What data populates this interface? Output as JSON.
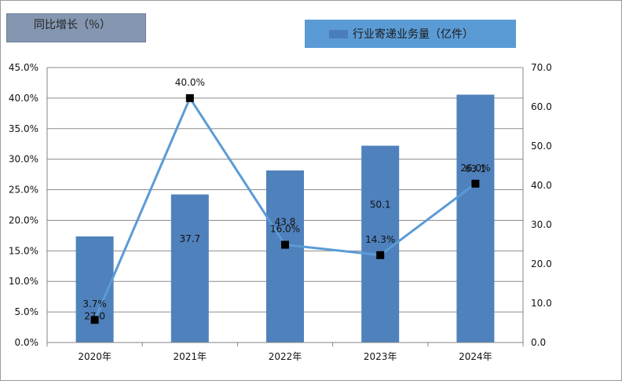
{
  "chart_data": {
    "type": "bar+line",
    "categories": [
      "2020年",
      "2021年",
      "2022年",
      "2023年",
      "2024年"
    ],
    "series": [
      {
        "name": "行业寄递业务量（亿件）",
        "kind": "bar",
        "axis": "right",
        "values": [
          27.0,
          37.7,
          43.8,
          50.1,
          63.1
        ],
        "labels": [
          "27.0",
          "37.7",
          "43.8",
          "50.1",
          "63.1"
        ],
        "color": "#4f81bd"
      },
      {
        "name": "同比增长（%）",
        "kind": "line",
        "axis": "left",
        "values": [
          3.7,
          40.0,
          16.0,
          14.3,
          26.0
        ],
        "labels": [
          "3.7%",
          "40.0%",
          "16.0%",
          "14.3%",
          "26.0%"
        ],
        "color": "#5b9bd5",
        "marker_color": "#000000"
      }
    ],
    "left_axis": {
      "min": 0,
      "max": 45,
      "step": 5,
      "ticks": [
        "0.0%",
        "5.0%",
        "10.0%",
        "15.0%",
        "20.0%",
        "25.0%",
        "30.0%",
        "35.0%",
        "40.0%",
        "45.0%"
      ]
    },
    "right_axis": {
      "min": 0,
      "max": 70,
      "step": 10,
      "ticks": [
        "0.0",
        "10.0",
        "20.0",
        "30.0",
        "40.0",
        "50.0",
        "60.0",
        "70.0"
      ]
    },
    "grid": true
  },
  "legend": {
    "line_label": "同比增长（％）",
    "bar_label": "行业寄递业务量（亿件）"
  }
}
